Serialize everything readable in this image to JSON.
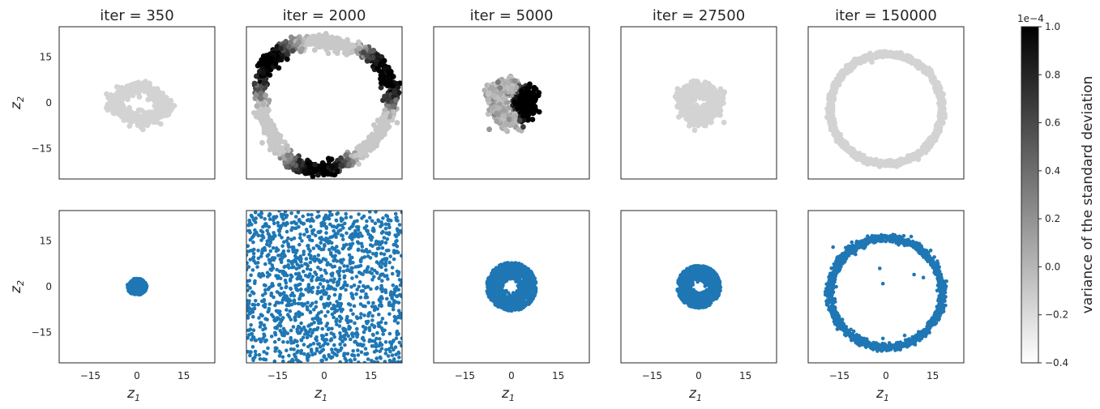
{
  "chart_data": [
    {
      "type": "scatter",
      "title": "iter = 350",
      "row": "std-colored",
      "color_values": "variance of the standard deviation",
      "xlim": [
        -25,
        25
      ],
      "ylim": [
        -25,
        25
      ],
      "ylabel": "z",
      "ylabel_sub": "2",
      "yticks": [
        {
          "v": 15,
          "label": "15"
        },
        {
          "v": 0,
          "label": "0"
        },
        {
          "v": -15,
          "label": "−15"
        }
      ],
      "shape": {
        "kind": "blob_ring",
        "cx": 1,
        "cy": -0.5,
        "rx": 8,
        "ry": 5,
        "width": 3,
        "n": 500,
        "color": "#d3d3d3"
      }
    },
    {
      "type": "scatter",
      "title": "iter = 2000",
      "row": "std-colored",
      "xlim": [
        -25,
        25
      ],
      "ylim": [
        -25,
        25
      ],
      "shape": {
        "kind": "ring",
        "cx": 0,
        "cy": 0,
        "r": 21,
        "width": 2.2,
        "n": 1300,
        "colormap": "variance"
      }
    },
    {
      "type": "scatter",
      "title": "iter = 5000",
      "row": "std-colored",
      "xlim": [
        -25,
        25
      ],
      "ylim": [
        -25,
        25
      ],
      "shape": {
        "kind": "ring",
        "cx": 0,
        "cy": 0,
        "r": 5.5,
        "width": 3,
        "n": 600,
        "colormap": "variance_right"
      }
    },
    {
      "type": "scatter",
      "title": "iter = 27500",
      "row": "std-colored",
      "xlim": [
        -25,
        25
      ],
      "ylim": [
        -25,
        25
      ],
      "shape": {
        "kind": "ring",
        "cx": 0,
        "cy": 0,
        "r": 5,
        "width": 2.8,
        "n": 500,
        "color": "#d3d3d3"
      }
    },
    {
      "type": "scatter",
      "title": "iter = 150000",
      "row": "std-colored",
      "xlim": [
        -25,
        25
      ],
      "ylim": [
        -25,
        25
      ],
      "shape": {
        "kind": "ring_thin",
        "cx": 0,
        "cy": -2,
        "r": 18,
        "width": 0.8,
        "n": 1500,
        "color": "#d3d3d3"
      }
    },
    {
      "type": "scatter",
      "row": "samples",
      "xlim": [
        -25,
        25
      ],
      "ylim": [
        -25,
        25
      ],
      "ylabel": "z",
      "ylabel_sub": "2",
      "xlabel": "z",
      "xlabel_sub": "1",
      "xticks": [
        {
          "v": -15,
          "label": "−15"
        },
        {
          "v": 0,
          "label": "0"
        },
        {
          "v": 15,
          "label": "15"
        }
      ],
      "yticks": [
        {
          "v": 15,
          "label": "15"
        },
        {
          "v": 0,
          "label": "0"
        },
        {
          "v": -15,
          "label": "−15"
        }
      ],
      "shape": {
        "kind": "disk",
        "cx": 0,
        "cy": 0,
        "r": 3.2,
        "n": 350,
        "color": "#1f77b4"
      }
    },
    {
      "type": "scatter",
      "row": "samples",
      "xlim": [
        -25,
        25
      ],
      "ylim": [
        -25,
        25
      ],
      "xlabel": "z",
      "xlabel_sub": "1",
      "xticks": [
        {
          "v": -15,
          "label": "−15"
        },
        {
          "v": 0,
          "label": "0"
        },
        {
          "v": 15,
          "label": "15"
        }
      ],
      "shape": {
        "kind": "uniform",
        "n": 1400,
        "color": "#1f77b4"
      }
    },
    {
      "type": "scatter",
      "row": "samples",
      "xlim": [
        -25,
        25
      ],
      "ylim": [
        -25,
        25
      ],
      "xlabel": "z",
      "xlabel_sub": "1",
      "xticks": [
        {
          "v": -15,
          "label": "−15"
        },
        {
          "v": 0,
          "label": "0"
        },
        {
          "v": 15,
          "label": "15"
        }
      ],
      "shape": {
        "kind": "annulus",
        "cx": 0,
        "cy": 0,
        "r_in": 2,
        "r_out": 8,
        "n": 1200,
        "color": "#1f77b4"
      }
    },
    {
      "type": "scatter",
      "row": "samples",
      "xlim": [
        -25,
        25
      ],
      "ylim": [
        -25,
        25
      ],
      "xlabel": "z",
      "xlabel_sub": "1",
      "xticks": [
        {
          "v": -15,
          "label": "−15"
        },
        {
          "v": 0,
          "label": "0"
        },
        {
          "v": 15,
          "label": "15"
        }
      ],
      "shape": {
        "kind": "annulus",
        "cx": 0,
        "cy": 0,
        "r_in": 1.5,
        "r_out": 7,
        "n": 1000,
        "color": "#1f77b4"
      }
    },
    {
      "type": "scatter",
      "row": "samples",
      "xlim": [
        -25,
        25
      ],
      "ylim": [
        -25,
        25
      ],
      "xlabel": "z",
      "xlabel_sub": "1",
      "xticks": [
        {
          "v": -15,
          "label": "−15"
        },
        {
          "v": 0,
          "label": "0"
        },
        {
          "v": 15,
          "label": "15"
        }
      ],
      "shape": {
        "kind": "ring_thin",
        "cx": 0,
        "cy": -2,
        "r": 18,
        "width": 1.2,
        "n": 1600,
        "color": "#1f77b4",
        "outliers": [
          [
            -7,
            15
          ],
          [
            -17,
            13
          ],
          [
            -16,
            0
          ],
          [
            -2,
            6
          ],
          [
            -1,
            1
          ],
          [
            9,
            4
          ],
          [
            12,
            3
          ],
          [
            -1,
            -17
          ],
          [
            6,
            -16
          ]
        ]
      }
    }
  ],
  "colorbar": {
    "label": "variance of the standard deviation",
    "offset_text": "1e−4",
    "range": [
      -0.4,
      1.0
    ],
    "ticks": [
      {
        "v": 1.0,
        "label": "1.0"
      },
      {
        "v": 0.8,
        "label": "0.8"
      },
      {
        "v": 0.6,
        "label": "0.6"
      },
      {
        "v": 0.4,
        "label": "0.4"
      },
      {
        "v": 0.2,
        "label": "0.2"
      },
      {
        "v": 0.0,
        "label": "0.0"
      },
      {
        "v": -0.2,
        "label": "−0.2"
      },
      {
        "v": -0.4,
        "label": "−0.4"
      }
    ],
    "colormap": [
      "#ffffff",
      "#000000"
    ]
  },
  "colors": {
    "scatter_blue": "#1f77b4",
    "gray_points": "#d3d3d3",
    "axes": "#262626"
  }
}
